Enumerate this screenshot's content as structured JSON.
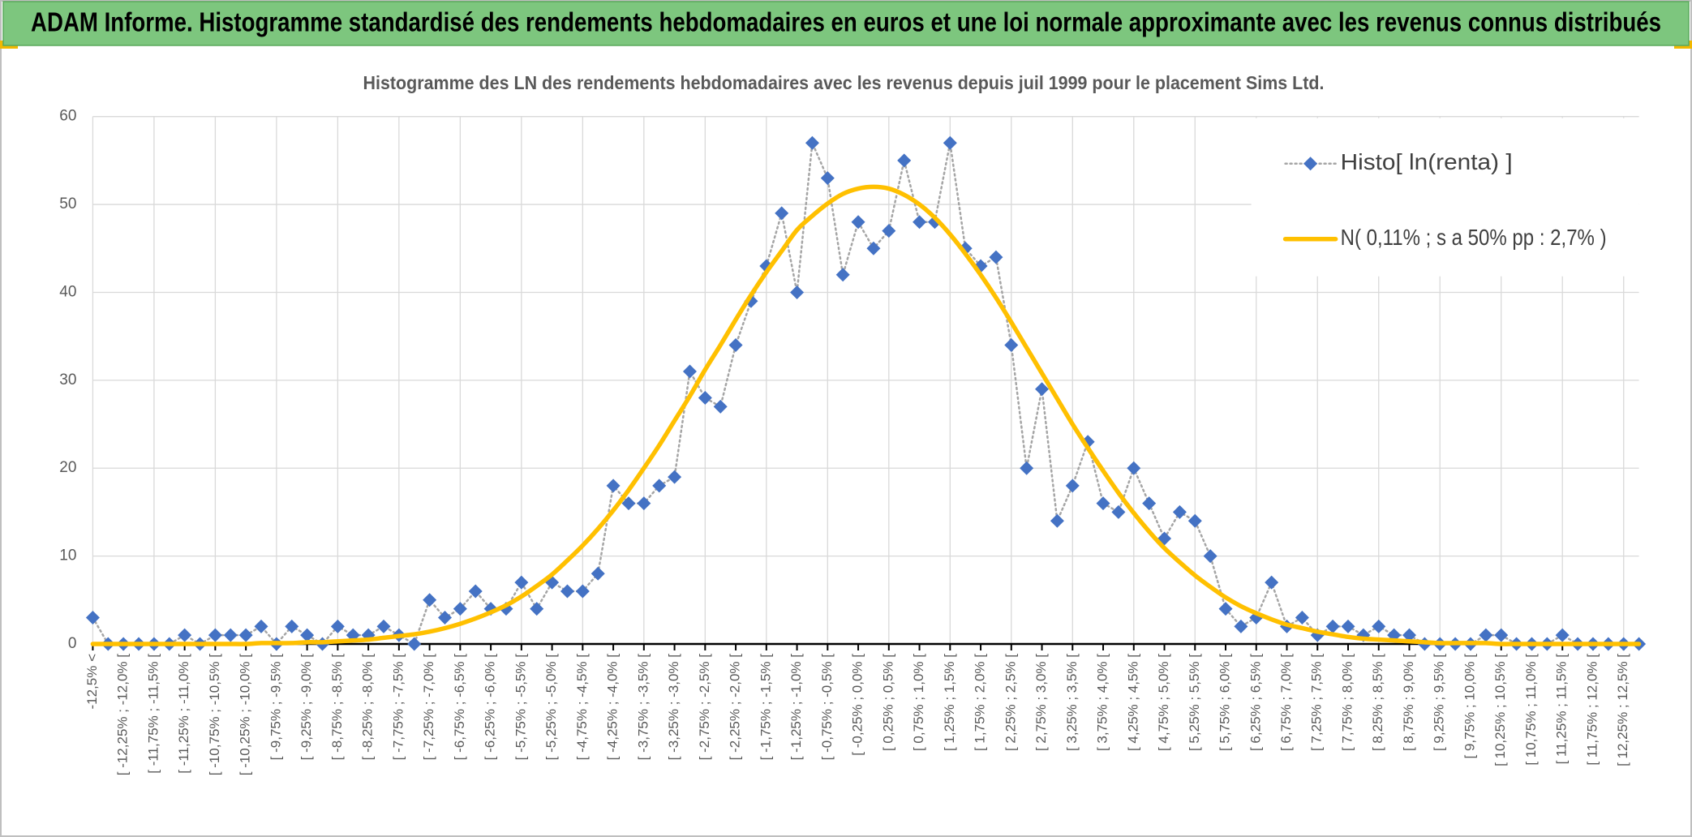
{
  "chart_data": {
    "type": "line",
    "title": "ADAM Informe. Histogramme standardisé des rendements hebdomadaires en euros et une loi normale approximante avec les revenus connus distribués",
    "subtitle": "Histogramme des LN des rendements hebdomadaires avec les revenus depuis juil 1999 pour le placement Sims Ltd.",
    "categories": [
      "-12,5% <",
      null,
      "[ -12,25% ; -12,0% [",
      null,
      "[ -11,75% ; -11,5% [",
      null,
      "[ -11,25% ; -11,0% [",
      null,
      "[ -10,75% ; -10,5% [",
      null,
      "[ -10,25% ; -10,0% [",
      null,
      "[ -9,75% ; -9,5% [",
      null,
      "[ -9,25% ; -9,0% [",
      null,
      "[ -8,75% ; -8,5% [",
      null,
      "[ -8,25% ; -8,0% [",
      null,
      "[ -7,75% ; -7,5% [",
      null,
      "[ -7,25% ; -7,0% [",
      null,
      "[ -6,75% ; -6,5% [",
      null,
      "[ -6,25% ; -6,0% [",
      null,
      "[ -5,75% ; -5,5% [",
      null,
      "[ -5,25% ; -5,0% [",
      null,
      "[ -4,75% ; -4,5% [",
      null,
      "[ -4,25% ; -4,0% [",
      null,
      "[ -3,75% ; -3,5% [",
      null,
      "[ -3,25% ; -3,0% [",
      null,
      "[ -2,75% ; -2,5% [",
      null,
      "[ -2,25% ; -2,0% [",
      null,
      "[ -1,75% ; -1,5% [",
      null,
      "[ -1,25% ; -1,0% [",
      null,
      "[ -0,75% ; -0,5% [",
      null,
      "[ -0,25% ; 0,0% [",
      null,
      "[ 0,25% ; 0,5% [",
      null,
      "[ 0,75% ; 1,0% [",
      null,
      "[ 1,25% ; 1,5% [",
      null,
      "[ 1,75% ; 2,0% [",
      null,
      "[ 2,25% ; 2,5% [",
      null,
      "[ 2,75% ; 3,0% [",
      null,
      "[ 3,25% ; 3,5% [",
      null,
      "[ 3,75% ; 4,0% [",
      null,
      "[ 4,25% ; 4,5% [",
      null,
      "[ 4,75% ; 5,0% [",
      null,
      "[ 5,25% ; 5,5% [",
      null,
      "[ 5,75% ; 6,0% [",
      null,
      "[ 6,25% ; 6,5% [",
      null,
      "[ 6,75% ; 7,0% [",
      null,
      "[ 7,25% ; 7,5% [",
      null,
      "[ 7,75% ; 8,0% [",
      null,
      "[ 8,25% ; 8,5% [",
      null,
      "[ 8,75% ; 9,0% [",
      null,
      "[ 9,25% ; 9,5% [",
      null,
      "[ 9,75% ; 10,0% [",
      null,
      "[ 10,25% ; 10,5% [",
      null,
      "[ 10,75% ; 11,0% [",
      null,
      "[ 11,25% ; 11,5% [",
      null,
      "[ 11,75% ; 12,0% [",
      null,
      "[ 12,25% ; 12,5% [",
      null
    ],
    "series": [
      {
        "name": "Histo[ ln(renta) ]",
        "color": "#4472c4",
        "line_color": "#a5a5a5",
        "line_style": "dotted",
        "marker": "diamond",
        "values": [
          3,
          0,
          0,
          0,
          0,
          0,
          1,
          0,
          1,
          1,
          1,
          2,
          0,
          2,
          1,
          0,
          2,
          1,
          1,
          2,
          1,
          0,
          5,
          3,
          4,
          6,
          4,
          4,
          7,
          4,
          7,
          6,
          6,
          8,
          18,
          16,
          16,
          18,
          19,
          31,
          28,
          27,
          34,
          39,
          43,
          49,
          40,
          57,
          53,
          42,
          48,
          45,
          47,
          55,
          48,
          48,
          57,
          45,
          43,
          44,
          34,
          20,
          29,
          14,
          18,
          23,
          16,
          15,
          20,
          16,
          12,
          15,
          14,
          10,
          4,
          2,
          3,
          7,
          2,
          3,
          1,
          2,
          2,
          1,
          2,
          1,
          1,
          0,
          0,
          0,
          0,
          1,
          1,
          0,
          0,
          0,
          1,
          0,
          0,
          0,
          0,
          0
        ]
      },
      {
        "name": "N( 0,11% ; s a 50% pp : 2,7% )",
        "color": "#ffc000",
        "line_style": "solid",
        "smooth": true,
        "values": [
          0,
          0,
          0,
          0,
          0,
          0,
          0,
          0,
          0,
          0,
          0,
          0.1,
          0.1,
          0.1,
          0.2,
          0.2,
          0.3,
          0.4,
          0.5,
          0.7,
          0.9,
          1.1,
          1.4,
          1.8,
          2.3,
          2.9,
          3.6,
          4.4,
          5.4,
          6.6,
          7.9,
          9.5,
          11.2,
          13.1,
          15.2,
          17.5,
          20.0,
          22.6,
          25.4,
          28.2,
          31.2,
          34.0,
          36.9,
          39.7,
          42.3,
          44.7,
          47.1,
          48.7,
          50.1,
          51.2,
          51.8,
          52.0,
          51.8,
          51.1,
          50.0,
          48.5,
          46.6,
          44.4,
          42.0,
          39.4,
          36.6,
          33.7,
          30.8,
          27.9,
          25.0,
          22.3,
          19.7,
          17.2,
          14.9,
          12.8,
          10.9,
          9.3,
          7.8,
          6.5,
          5.3,
          4.3,
          3.5,
          2.8,
          2.2,
          1.8,
          1.4,
          1.1,
          0.8,
          0.6,
          0.5,
          0.4,
          0.3,
          0.2,
          0.1,
          0.1,
          0.1,
          0.1,
          0,
          0,
          0,
          0,
          0,
          0,
          0,
          0,
          0,
          0
        ]
      }
    ],
    "ylim": [
      0,
      60
    ],
    "yticks": [
      0,
      10,
      20,
      30,
      40,
      50,
      60
    ],
    "grid": true,
    "legend": "top-right"
  }
}
